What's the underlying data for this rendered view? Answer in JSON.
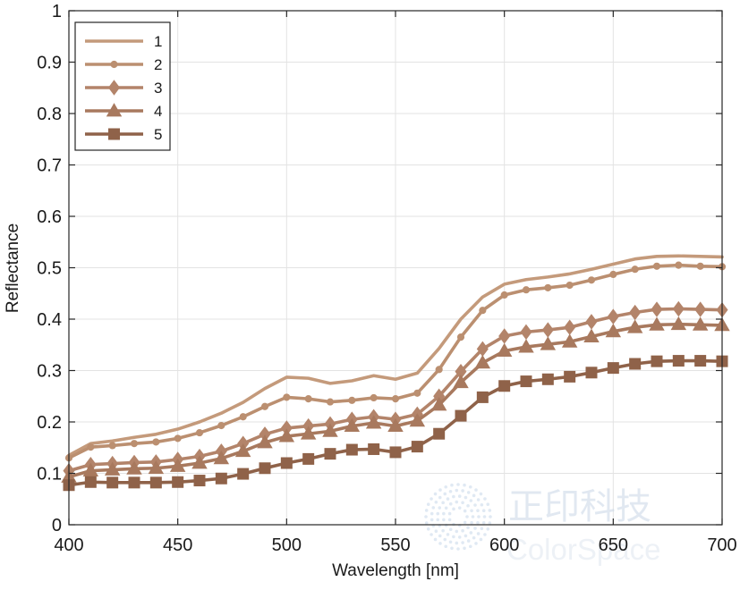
{
  "chart_data": {
    "type": "line",
    "title": "",
    "xlabel": "Wavelength [nm]",
    "ylabel": "Reflectance",
    "xlim": [
      400,
      700
    ],
    "ylim": [
      0,
      1
    ],
    "x_ticks": [
      400,
      450,
      500,
      550,
      600,
      650,
      700
    ],
    "y_ticks": [
      0,
      0.1,
      0.2,
      0.3,
      0.4,
      0.5,
      0.6,
      0.7,
      0.8,
      0.9,
      1
    ],
    "y_tick_labels": [
      "0",
      "0.1",
      "0.2",
      "0.3",
      "0.4",
      "0.5",
      "0.6",
      "0.7",
      "0.8",
      "0.9",
      "1"
    ],
    "grid": true,
    "legend_position": "top-left",
    "x": [
      400,
      410,
      420,
      430,
      440,
      450,
      460,
      470,
      480,
      490,
      500,
      510,
      520,
      530,
      540,
      550,
      560,
      570,
      580,
      590,
      600,
      610,
      620,
      630,
      640,
      650,
      660,
      670,
      680,
      690,
      700
    ],
    "series": [
      {
        "name": "1",
        "marker": "none",
        "color": "#c49a7b",
        "values": [
          0.135,
          0.158,
          0.163,
          0.17,
          0.176,
          0.186,
          0.2,
          0.217,
          0.238,
          0.265,
          0.287,
          0.285,
          0.275,
          0.28,
          0.29,
          0.283,
          0.295,
          0.343,
          0.4,
          0.443,
          0.468,
          0.477,
          0.482,
          0.488,
          0.497,
          0.507,
          0.517,
          0.522,
          0.523,
          0.522,
          0.521
        ]
      },
      {
        "name": "2",
        "marker": "circle",
        "color": "#bb8f70",
        "values": [
          0.13,
          0.151,
          0.154,
          0.158,
          0.161,
          0.168,
          0.179,
          0.193,
          0.21,
          0.23,
          0.248,
          0.245,
          0.239,
          0.242,
          0.247,
          0.245,
          0.256,
          0.302,
          0.365,
          0.417,
          0.447,
          0.457,
          0.461,
          0.466,
          0.476,
          0.487,
          0.497,
          0.503,
          0.505,
          0.503,
          0.502
        ]
      },
      {
        "name": "3",
        "marker": "diamond",
        "color": "#b3846a",
        "values": [
          0.105,
          0.117,
          0.119,
          0.121,
          0.122,
          0.127,
          0.133,
          0.143,
          0.158,
          0.176,
          0.188,
          0.192,
          0.196,
          0.205,
          0.21,
          0.205,
          0.215,
          0.25,
          0.298,
          0.342,
          0.367,
          0.375,
          0.379,
          0.384,
          0.395,
          0.405,
          0.413,
          0.419,
          0.42,
          0.419,
          0.418
        ]
      },
      {
        "name": "4",
        "marker": "triangle",
        "color": "#a8795e",
        "values": [
          0.093,
          0.105,
          0.107,
          0.109,
          0.11,
          0.114,
          0.12,
          0.129,
          0.143,
          0.16,
          0.172,
          0.177,
          0.182,
          0.192,
          0.198,
          0.192,
          0.202,
          0.233,
          0.277,
          0.315,
          0.338,
          0.346,
          0.351,
          0.356,
          0.366,
          0.376,
          0.384,
          0.389,
          0.39,
          0.389,
          0.388
        ]
      },
      {
        "name": "5",
        "marker": "square",
        "color": "#8f6249",
        "values": [
          0.077,
          0.083,
          0.082,
          0.082,
          0.082,
          0.083,
          0.086,
          0.09,
          0.099,
          0.11,
          0.12,
          0.128,
          0.138,
          0.146,
          0.147,
          0.141,
          0.152,
          0.177,
          0.212,
          0.248,
          0.27,
          0.279,
          0.283,
          0.288,
          0.296,
          0.305,
          0.313,
          0.318,
          0.319,
          0.319,
          0.318
        ]
      }
    ]
  },
  "watermark": {
    "cn_text": "正印科技",
    "en_text": "ColorSpace"
  }
}
